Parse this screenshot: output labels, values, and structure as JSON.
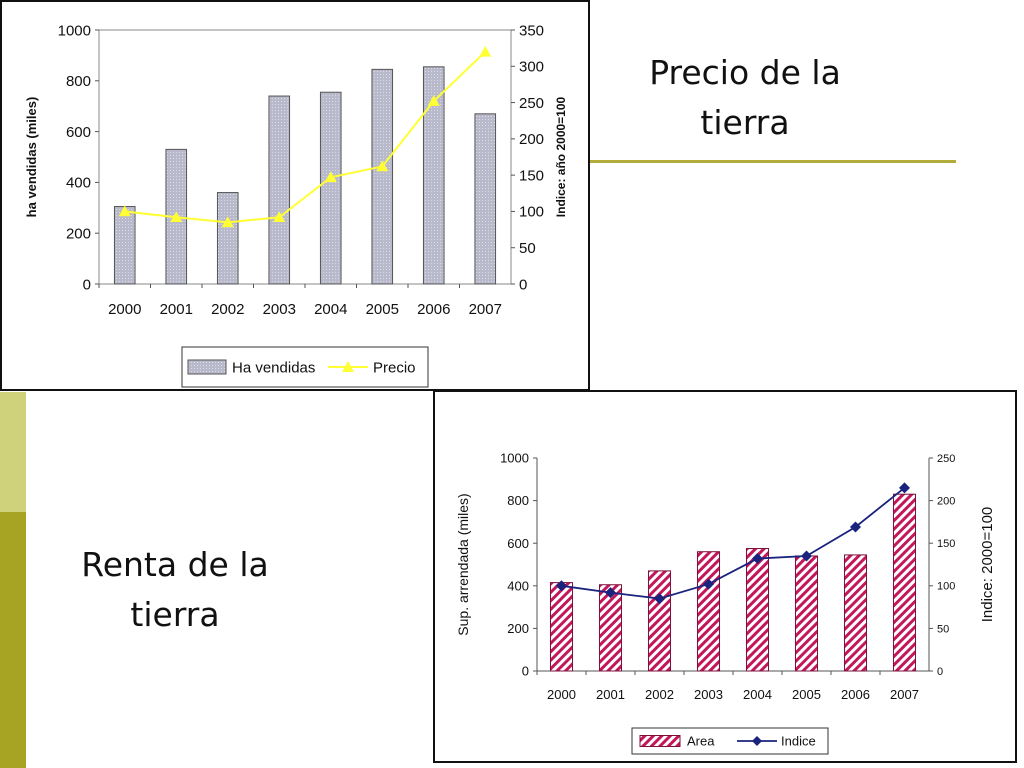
{
  "titles": {
    "precio": [
      "Precio de la",
      "tierra"
    ],
    "renta": [
      "Renta de la",
      "tierra"
    ]
  },
  "colors": {
    "bar_fill_1": "#c3c3d4",
    "line_1": "#ffff33",
    "bar_fill_2": "#c2185b",
    "line_2": "#1a237e",
    "accent_rule": "#b2ad3a",
    "side_bar_light": "#cfd27a",
    "side_bar_dark": "#a7a323"
  },
  "chart_data": [
    {
      "type": "bar",
      "categories": [
        "2000",
        "2001",
        "2002",
        "2003",
        "2004",
        "2005",
        "2006",
        "2007"
      ],
      "series": [
        {
          "name": "Ha vendidas",
          "type": "bar",
          "axis": "left",
          "values": [
            305,
            530,
            360,
            740,
            755,
            845,
            855,
            670
          ]
        },
        {
          "name": "Precio",
          "type": "line",
          "axis": "right",
          "values": [
            100,
            92,
            85,
            92,
            147,
            162,
            252,
            320
          ]
        }
      ],
      "ylabel": "ha vendidas (miles)",
      "y2label": "Indice: año 2000=100",
      "ylim": [
        0,
        1000
      ],
      "yticks": [
        "0",
        "200",
        "400",
        "600",
        "800",
        "1000"
      ],
      "y2lim": [
        0,
        350
      ],
      "y2ticks": [
        "0",
        "50",
        "100",
        "150",
        "200",
        "250",
        "300",
        "350"
      ],
      "legend": "bottom",
      "grid": false
    },
    {
      "type": "bar",
      "categories": [
        "2000",
        "2001",
        "2002",
        "2003",
        "2004",
        "2005",
        "2006",
        "2007"
      ],
      "series": [
        {
          "name": "Area",
          "type": "bar",
          "axis": "left",
          "values": [
            415,
            405,
            470,
            560,
            575,
            540,
            545,
            830
          ]
        },
        {
          "name": "Indice",
          "type": "line",
          "axis": "right",
          "values": [
            100,
            92,
            85,
            102,
            132,
            135,
            169,
            215
          ]
        }
      ],
      "ylabel": "Sup. arrendada (miles)",
      "y2label": "Indice: 2000=100",
      "ylim": [
        0,
        1000
      ],
      "yticks": [
        "0",
        "200",
        "400",
        "600",
        "800",
        "1000"
      ],
      "y2lim": [
        0,
        250
      ],
      "y2ticks": [
        "0",
        "50",
        "100",
        "150",
        "200",
        "250"
      ],
      "legend": "bottom",
      "grid": false
    }
  ]
}
